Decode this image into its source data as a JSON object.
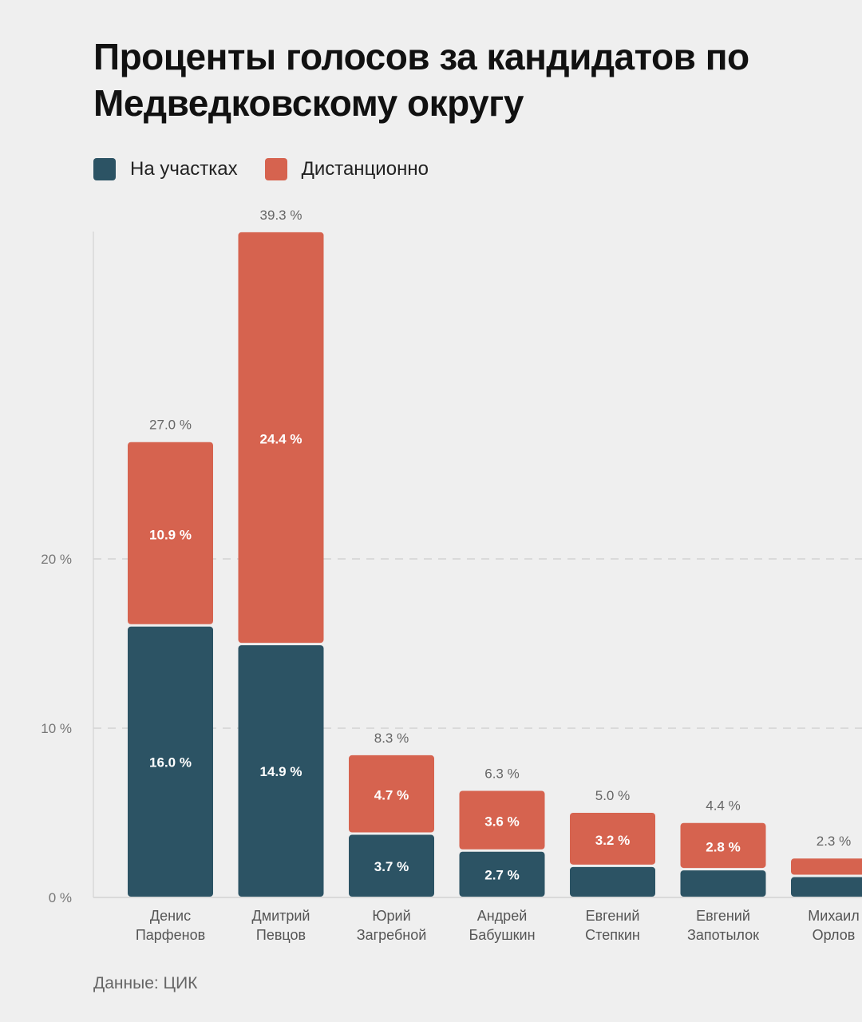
{
  "title": "Проценты голосов за кандидатов по Медведковскому округу",
  "source": "Данные: ЦИК",
  "colors": {
    "polling": "#2c5364",
    "remote": "#d6634f",
    "background": "#efefef"
  },
  "chart_data": {
    "type": "bar",
    "stacked": true,
    "title": "Проценты голосов за кандидатов по Медведковскому округу",
    "legend": [
      "На участках",
      "Дистанционно"
    ],
    "legend_position": "top-left",
    "categories": [
      [
        "Денис",
        "Парфенов"
      ],
      [
        "Дмитрий",
        "Певцов"
      ],
      [
        "Юрий",
        "Загребной"
      ],
      [
        "Андрей",
        "Бабушкин"
      ],
      [
        "Евгений",
        "Степкин"
      ],
      [
        "Евгений",
        "Запотылок"
      ],
      [
        "Михаил",
        "Орлов"
      ]
    ],
    "series": [
      {
        "name": "На участках",
        "values": [
          16.0,
          14.9,
          3.7,
          2.7,
          1.8,
          1.6,
          1.2
        ],
        "labels": [
          "16.0 %",
          "14.9 %",
          "3.7 %",
          "2.7 %",
          "",
          "",
          ""
        ]
      },
      {
        "name": "Дистанционно",
        "values": [
          10.9,
          24.4,
          4.7,
          3.6,
          3.2,
          2.8,
          1.1
        ],
        "labels": [
          "10.9 %",
          "24.4 %",
          "4.7 %",
          "3.6 %",
          "3.2 %",
          "2.8 %",
          ""
        ]
      }
    ],
    "totals": [
      "27.0 %",
      "39.3 %",
      "8.3 %",
      "6.3 %",
      "5.0 %",
      "4.4 %",
      "2.3 %"
    ],
    "yticks": [
      0,
      10,
      20
    ],
    "ytick_labels": [
      "0 %",
      "10 %",
      "20 %"
    ],
    "ylim": [
      0,
      40
    ],
    "grid": true,
    "xlabel": "",
    "ylabel": ""
  }
}
